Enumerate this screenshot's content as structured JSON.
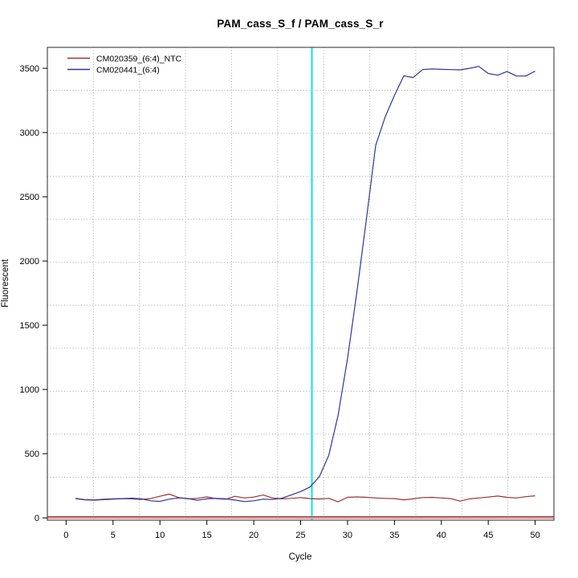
{
  "chart_data": {
    "type": "line",
    "title": "PAM_cass_S_f / PAM_cass_S_r",
    "xlabel": "Cycle",
    "ylabel": "Fluorescent",
    "xlim": [
      -2,
      52
    ],
    "ylim": [
      -18,
      3663
    ],
    "x_ticks": [
      0,
      5,
      10,
      15,
      20,
      25,
      30,
      35,
      40,
      45,
      50
    ],
    "y_ticks": [
      0,
      500,
      1000,
      1500,
      2000,
      2500,
      3000,
      3500
    ],
    "grid": {
      "on": true,
      "x_divisions": 11,
      "y_divisions": 11,
      "color": "#aaaaaa"
    },
    "legend_position": "top-left",
    "threshold_cycle_line": {
      "x": 26.2,
      "color": "#00e8e8"
    },
    "baseline_line": {
      "y": 0,
      "color": "#e08b8b",
      "edge_color": "#9c3a3a"
    },
    "x_start_cycle": 1,
    "series": [
      {
        "name": "CM020359_(6:4)_NTC",
        "color": "#9e3030",
        "values": [
          152,
          142,
          140,
          145,
          148,
          150,
          148,
          144,
          150,
          168,
          185,
          158,
          148,
          152,
          163,
          150,
          145,
          168,
          155,
          162,
          178,
          155,
          148,
          152,
          158,
          150,
          147,
          152,
          125,
          160,
          163,
          160,
          155,
          152,
          150,
          141,
          148,
          158,
          160,
          155,
          150,
          131,
          148,
          155,
          162,
          170,
          160,
          155,
          165,
          172
        ]
      },
      {
        "name": "CM020441_(6:4)",
        "color": "#32329f",
        "values": [
          150,
          140,
          138,
          142,
          146,
          150,
          153,
          148,
          133,
          128,
          146,
          156,
          150,
          137,
          148,
          152,
          148,
          139,
          127,
          133,
          146,
          143,
          153,
          178,
          205,
          240,
          322,
          488,
          800,
          1240,
          1760,
          2320,
          2900,
          3120,
          3290,
          3441,
          3428,
          3490,
          3495,
          3492,
          3490,
          3488,
          3500,
          3515,
          3460,
          3446,
          3475,
          3440,
          3440,
          3478
        ]
      }
    ],
    "plot_box_color": "#4d4d4d"
  }
}
